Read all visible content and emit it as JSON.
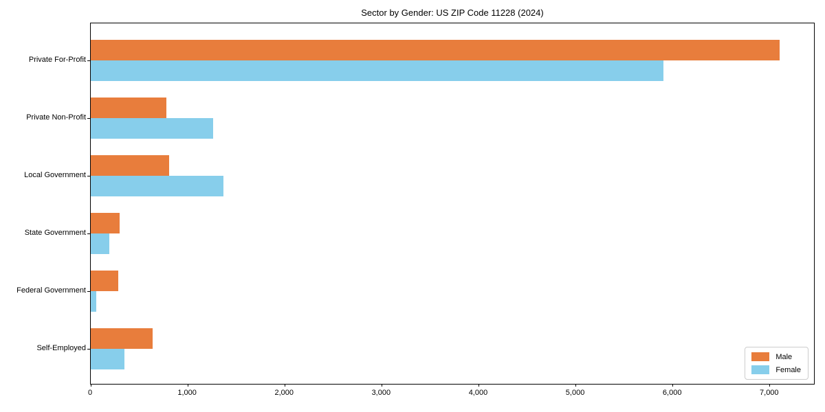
{
  "page": {
    "background_color": "#ffffff",
    "text_color": "#000000"
  },
  "chart_data": {
    "type": "bar",
    "orientation": "horizontal",
    "title": "Sector by Gender: US ZIP Code 11228 (2024)",
    "xlabel": "",
    "ylabel": "",
    "categories": [
      "Private For-Profit",
      "Private Non-Profit",
      "Local Government",
      "State Government",
      "Federal Government",
      "Self-Employed"
    ],
    "series": [
      {
        "name": "Male",
        "color": "#e87d3c",
        "values": [
          7100,
          780,
          810,
          300,
          280,
          640
        ]
      },
      {
        "name": "Female",
        "color": "#87ceeb",
        "values": [
          5900,
          1260,
          1370,
          190,
          60,
          350
        ]
      }
    ],
    "xlim": [
      0,
      7455
    ],
    "xticks": [
      0,
      1000,
      2000,
      3000,
      4000,
      5000,
      6000,
      7000
    ],
    "xtick_labels": [
      "0",
      "1,000",
      "2,000",
      "3,000",
      "4,000",
      "5,000",
      "6,000",
      "7,000"
    ],
    "grid": false,
    "legend": {
      "position": "lower right",
      "entries": [
        "Male",
        "Female"
      ]
    }
  }
}
